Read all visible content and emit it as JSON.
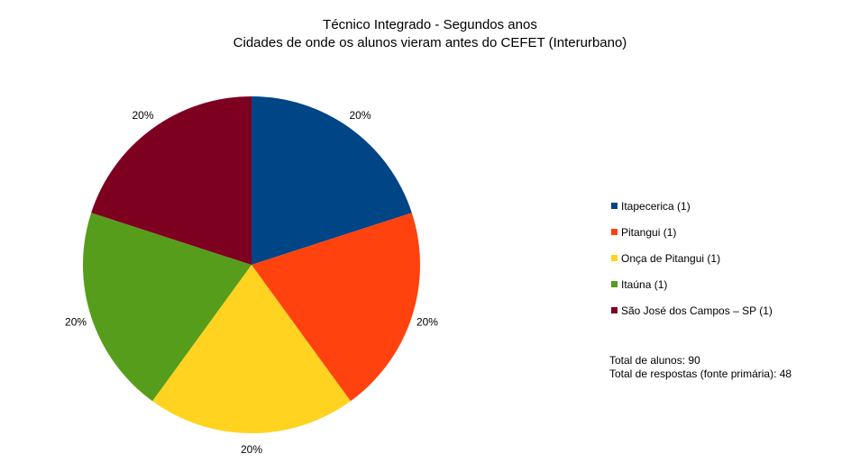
{
  "chart_data": {
    "type": "pie",
    "title": "Técnico Integrado - Segundos anos",
    "subtitle": "Cidades de onde os alunos vieram antes do CEFET (Interurbano)",
    "slices": [
      {
        "label": "Itapecerica (1)",
        "value": 20,
        "data_label": "20%",
        "color": "#004586"
      },
      {
        "label": "Pitangui (1)",
        "value": 20,
        "data_label": "20%",
        "color": "#ff420e"
      },
      {
        "label": "Onça de Pitangui (1)",
        "value": 20,
        "data_label": "20%",
        "color": "#ffd320"
      },
      {
        "label": "Itaúna (1)",
        "value": 20,
        "data_label": "20%",
        "color": "#579d1c"
      },
      {
        "label": "São José dos Campos – SP (1)",
        "value": 20,
        "data_label": "20%",
        "color": "#7e0021"
      }
    ],
    "legend_position": "right"
  },
  "totals": {
    "alunos": "Total de alunos: 90",
    "respostas": "Total de respostas (fonte primária): 48"
  }
}
